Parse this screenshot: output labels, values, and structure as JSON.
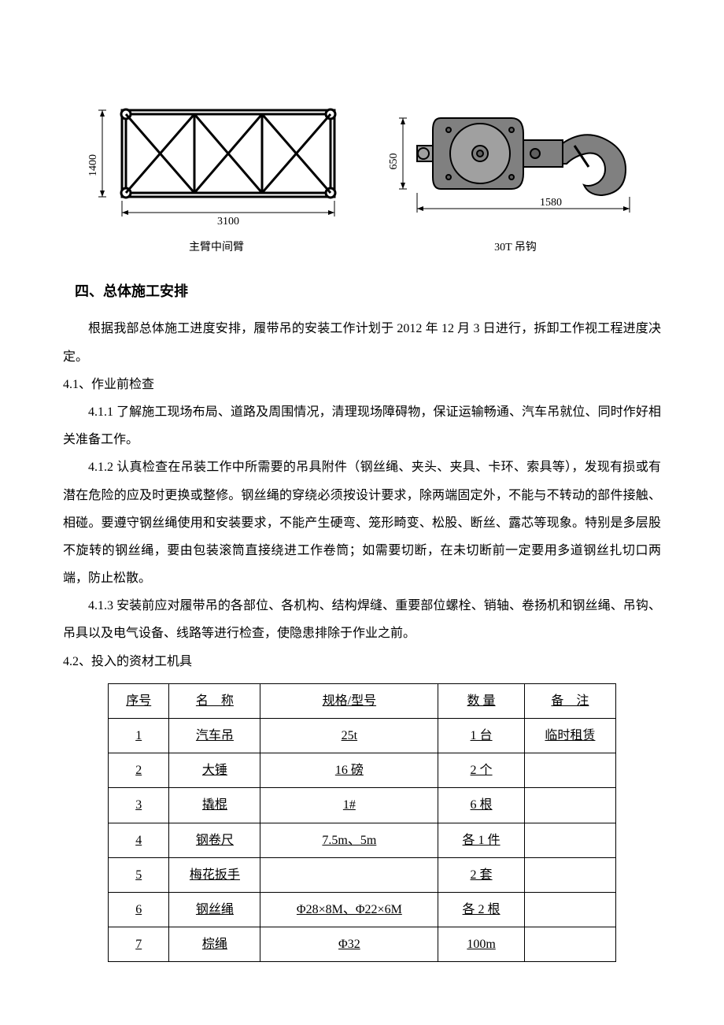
{
  "figures": {
    "truss": {
      "width_label": "3100",
      "height_label": "1400",
      "caption": "主臂中间臂",
      "stroke": "#000000",
      "fill": "#ffffff"
    },
    "hook": {
      "width_label": "1580",
      "height_label": "650",
      "caption": "30T 吊钩",
      "stroke": "#000000",
      "fill": "#808080",
      "fill_light": "#a0a0a0"
    }
  },
  "section": {
    "heading": "四、总体施工安排",
    "intro": "根据我部总体施工进度安排，履带吊的安装工作计划于 2012 年 12 月 3 日进行，拆卸工作视工程进度决定。",
    "s41_title": "4.1、作业前检查",
    "s411": "4.1.1 了解施工现场布局、道路及周围情况，清理现场障碍物，保证运输畅通、汽车吊就位、同时作好相关准备工作。",
    "s412": "4.1.2 认真检查在吊装工作中所需要的吊具附件（钢丝绳、夹头、夹具、卡环、索具等），发现有损或有潜在危险的应及时更换或整修。钢丝绳的穿绕必须按设计要求，除两端固定外，不能与不转动的部件接触、相碰。要遵守钢丝绳使用和安装要求，不能产生硬弯、笼形畸变、松股、断丝、露芯等现象。特别是多层股不旋转的钢丝绳，要由包装滚筒直接绕进工作卷筒；如需要切断，在未切断前一定要用多道钢丝扎切口两端，防止松散。",
    "s413": "4.1.3 安装前应对履带吊的各部位、各机构、结构焊缝、重要部位螺栓、销轴、卷扬机和钢丝绳、吊钩、吊具以及电气设备、线路等进行检查，使隐患排除于作业之前。",
    "s42_title": "4.2、投入的资材工机具"
  },
  "table": {
    "columns": [
      "序号",
      "名　称",
      "规格/型号",
      "数 量",
      "备　注"
    ],
    "rows": [
      [
        "1",
        "汽车吊",
        "25t",
        "1 台",
        "临时租赁"
      ],
      [
        "2",
        "大锤",
        "16 磅",
        "2 个",
        ""
      ],
      [
        "3",
        "撬棍",
        "1#",
        "6 根",
        ""
      ],
      [
        "4",
        "钢卷尺",
        "7.5m、5m",
        "各 1 件",
        ""
      ],
      [
        "5",
        "梅花扳手",
        "",
        "2 套",
        ""
      ],
      [
        "6",
        "钢丝绳",
        "Φ28×8M、Φ22×6M",
        "各 2 根",
        ""
      ],
      [
        "7",
        "棕绳",
        "Φ32",
        "100m",
        ""
      ]
    ],
    "col_widths": [
      "12%",
      "18%",
      "35%",
      "17%",
      "18%"
    ]
  }
}
